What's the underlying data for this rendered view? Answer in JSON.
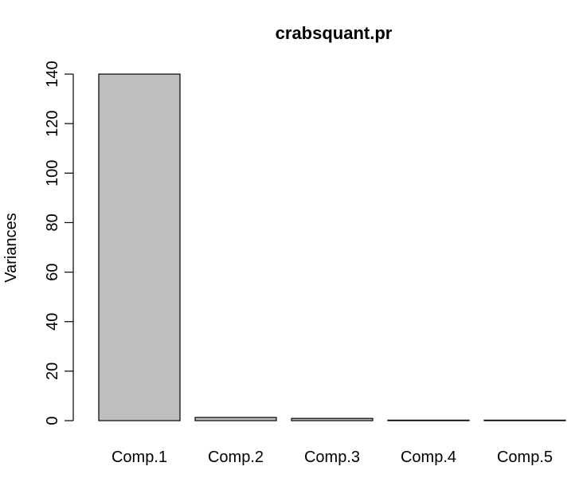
{
  "chart_data": {
    "type": "bar",
    "title": "crabsquant.pr",
    "xlabel": "",
    "ylabel": "Variances",
    "categories": [
      "Comp.1",
      "Comp.2",
      "Comp.3",
      "Comp.4",
      "Comp.5"
    ],
    "values": [
      140,
      1.3,
      0.9,
      0.2,
      0.1
    ],
    "ylim": [
      0,
      140
    ],
    "yticks": [
      0,
      20,
      40,
      60,
      80,
      100,
      120,
      140
    ],
    "grid": false,
    "bar_color": "#bebebe",
    "bar_border_color": "#000000"
  }
}
